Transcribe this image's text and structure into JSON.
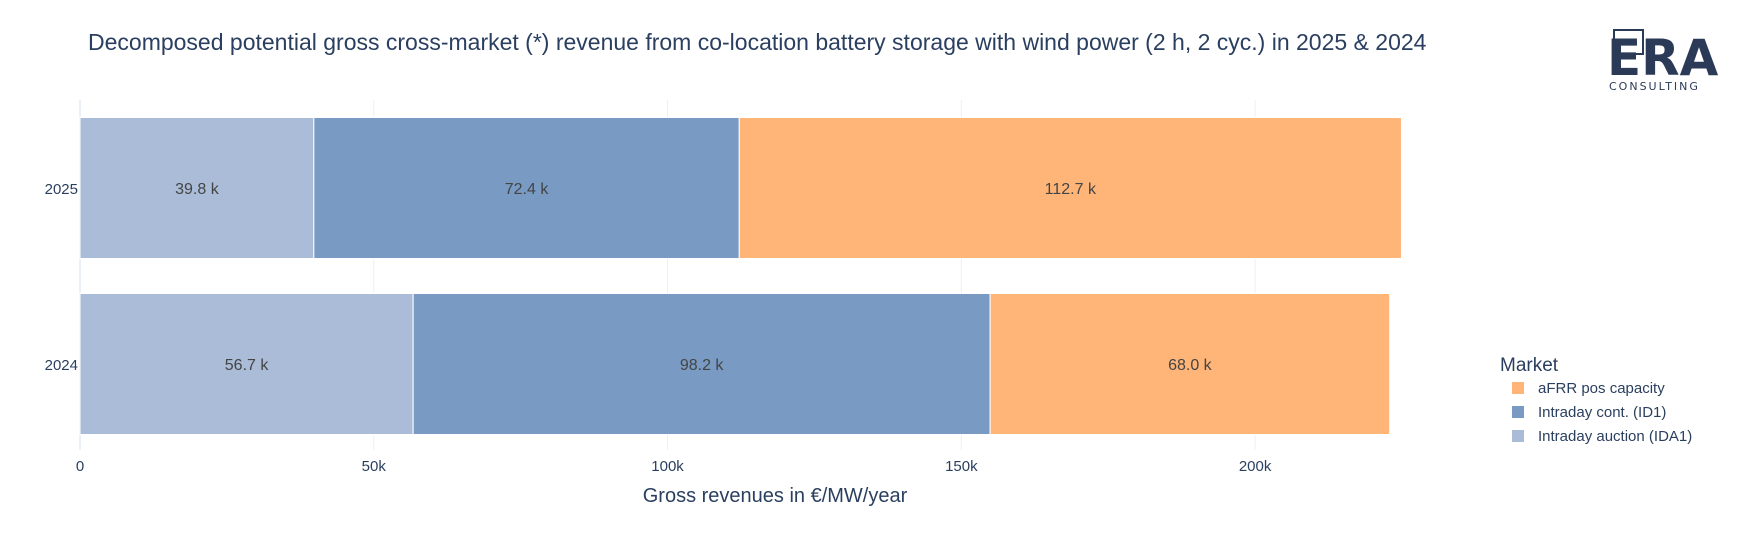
{
  "chart_data": {
    "type": "bar",
    "orientation": "horizontal",
    "barmode": "stack",
    "title": "Decomposed potential gross cross-market (*) revenue from co-location battery storage with wind power (2 h, 2 cyc.) in 2025 & 2024",
    "xlabel": "Gross revenues in €/MW/year",
    "ylabel": "",
    "categories": [
      "2025",
      "2024"
    ],
    "xlim": [
      0,
      225000
    ],
    "x_ticks": [
      0,
      50000,
      100000,
      150000,
      200000
    ],
    "x_tick_labels": [
      "0",
      "50k",
      "100k",
      "150k",
      "200k"
    ],
    "grid": true,
    "series": [
      {
        "name": "Intraday auction (IDA1)",
        "color": "#aabcd8",
        "values": [
          39800,
          56700
        ],
        "labels": [
          "39.8 k",
          "56.7 k"
        ]
      },
      {
        "name": "Intraday cont. (ID1)",
        "color": "#789ac3",
        "values": [
          72400,
          98200
        ],
        "labels": [
          "72.4 k",
          "98.2 k"
        ]
      },
      {
        "name": "aFRR pos capacity",
        "color": "#ffb578",
        "values": [
          112700,
          68000
        ],
        "labels": [
          "112.7 k",
          "68.0 k"
        ]
      }
    ],
    "legend": {
      "title": "Market",
      "position": "right",
      "order": [
        "aFRR pos capacity",
        "Intraday cont. (ID1)",
        "Intraday auction (IDA1)"
      ]
    }
  },
  "logo": {
    "main": "ERA",
    "sub": "CONSULTING",
    "color": "#2b3a57"
  }
}
